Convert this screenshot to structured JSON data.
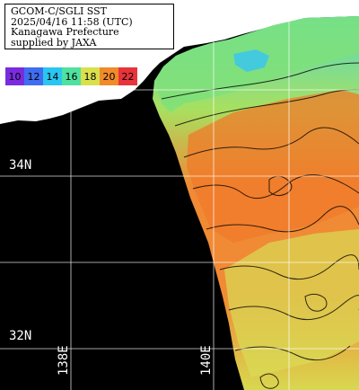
{
  "title": {
    "line1": "GCOM-C/SGLI SST",
    "line2": "2025/04/16 11:58 (UTC)",
    "line3": "Kanagawa Prefecture",
    "line4": "supplied by JAXA"
  },
  "color_scale": {
    "labels": [
      "10",
      "12",
      "14",
      "16",
      "18",
      "20",
      "22"
    ],
    "colors": [
      "#7a2be0",
      "#3f6df0",
      "#29c6f0",
      "#50e0a0",
      "#d9e04b",
      "#f08a2a",
      "#e8333a"
    ]
  },
  "grid": {
    "lat_labels": [
      "34N",
      "32N"
    ],
    "lon_labels": [
      "138E",
      "140E"
    ]
  },
  "colors": {
    "land": "#ffffff",
    "no_data": "#000000",
    "grid": "#ffffff"
  }
}
